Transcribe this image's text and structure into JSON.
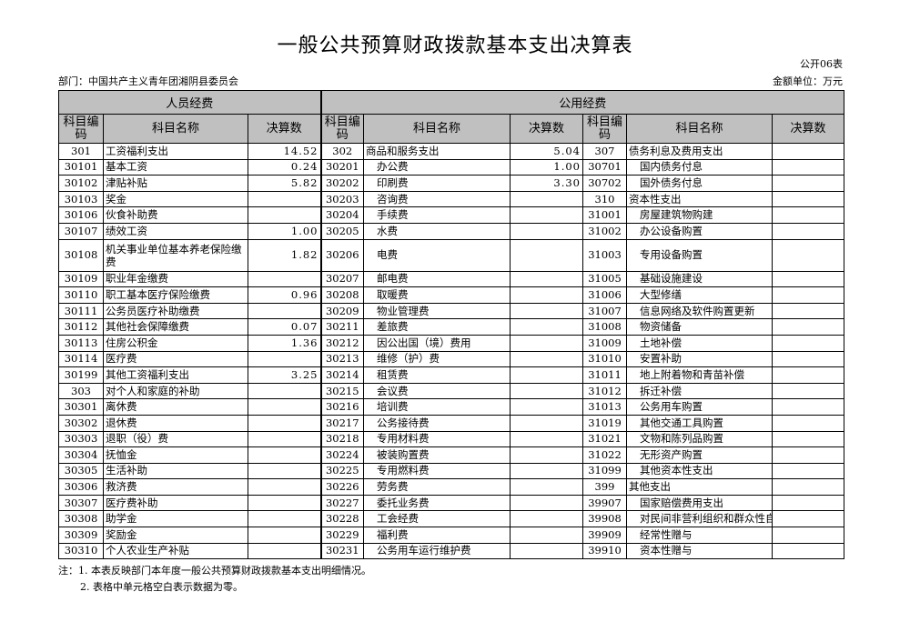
{
  "title": "一般公共预算财政拨款基本支出决算表",
  "form_no": "公开06表",
  "department": "部门：中国共产主义青年团湘阴县委员会",
  "unit": "金额单位：万元",
  "sections": {
    "personnel": "人员经费",
    "public": "公用经费"
  },
  "columns": {
    "code": "科目编码",
    "name": "科目名称",
    "amount": "决算数"
  },
  "rows": [
    [
      [
        "301",
        "工资福利支出",
        "14.52"
      ],
      [
        "302",
        "商品和服务支出",
        "5.04"
      ],
      [
        "307",
        "债务利息及费用支出",
        ""
      ]
    ],
    [
      [
        "30101",
        "基本工资",
        "0.24"
      ],
      [
        "30201",
        "办公费",
        "1.00"
      ],
      [
        "30701",
        "国内债务付息",
        ""
      ]
    ],
    [
      [
        "30102",
        "津贴补贴",
        "5.82"
      ],
      [
        "30202",
        "印刷费",
        "3.30"
      ],
      [
        "30702",
        "国外债务付息",
        ""
      ]
    ],
    [
      [
        "30103",
        "奖金",
        ""
      ],
      [
        "30203",
        "咨询费",
        ""
      ],
      [
        "310",
        "资本性支出",
        ""
      ]
    ],
    [
      [
        "30106",
        "伙食补助费",
        ""
      ],
      [
        "30204",
        "手续费",
        ""
      ],
      [
        "31001",
        "房屋建筑物购建",
        ""
      ]
    ],
    [
      [
        "30107",
        "绩效工资",
        "1.00"
      ],
      [
        "30205",
        "水费",
        ""
      ],
      [
        "31002",
        "办公设备购置",
        ""
      ]
    ],
    [
      [
        "30108",
        "机关事业单位基本养老保险缴费",
        "1.82"
      ],
      [
        "30206",
        "电费",
        ""
      ],
      [
        "31003",
        "专用设备购置",
        ""
      ]
    ],
    [
      [
        "30109",
        "职业年金缴费",
        ""
      ],
      [
        "30207",
        "邮电费",
        ""
      ],
      [
        "31005",
        "基础设施建设",
        ""
      ]
    ],
    [
      [
        "30110",
        "职工基本医疗保险缴费",
        "0.96"
      ],
      [
        "30208",
        "取暖费",
        ""
      ],
      [
        "31006",
        "大型修缮",
        ""
      ]
    ],
    [
      [
        "30111",
        "公务员医疗补助缴费",
        ""
      ],
      [
        "30209",
        "物业管理费",
        ""
      ],
      [
        "31007",
        "信息网络及软件购置更新",
        ""
      ]
    ],
    [
      [
        "30112",
        "其他社会保障缴费",
        "0.07"
      ],
      [
        "30211",
        "差旅费",
        ""
      ],
      [
        "31008",
        "物资储备",
        ""
      ]
    ],
    [
      [
        "30113",
        "住房公积金",
        "1.36"
      ],
      [
        "30212",
        "因公出国（境）费用",
        ""
      ],
      [
        "31009",
        "土地补偿",
        ""
      ]
    ],
    [
      [
        "30114",
        "医疗费",
        ""
      ],
      [
        "30213",
        "维修（护）费",
        ""
      ],
      [
        "31010",
        "安置补助",
        ""
      ]
    ],
    [
      [
        "30199",
        "其他工资福利支出",
        "3.25"
      ],
      [
        "30214",
        "租赁费",
        ""
      ],
      [
        "31011",
        "地上附着物和青苗补偿",
        ""
      ]
    ],
    [
      [
        "303",
        "对个人和家庭的补助",
        ""
      ],
      [
        "30215",
        "会议费",
        ""
      ],
      [
        "31012",
        "拆迁补偿",
        ""
      ]
    ],
    [
      [
        "30301",
        "离休费",
        ""
      ],
      [
        "30216",
        "培训费",
        ""
      ],
      [
        "31013",
        "公务用车购置",
        ""
      ]
    ],
    [
      [
        "30302",
        "退休费",
        ""
      ],
      [
        "30217",
        "公务接待费",
        ""
      ],
      [
        "31019",
        "其他交通工具购置",
        ""
      ]
    ],
    [
      [
        "30303",
        "退职（役）费",
        ""
      ],
      [
        "30218",
        "专用材料费",
        ""
      ],
      [
        "31021",
        "文物和陈列品购置",
        ""
      ]
    ],
    [
      [
        "30304",
        "抚恤金",
        ""
      ],
      [
        "30224",
        "被装购置费",
        ""
      ],
      [
        "31022",
        "无形资产购置",
        ""
      ]
    ],
    [
      [
        "30305",
        "生活补助",
        ""
      ],
      [
        "30225",
        "专用燃料费",
        ""
      ],
      [
        "31099",
        "其他资本性支出",
        ""
      ]
    ],
    [
      [
        "30306",
        "救济费",
        ""
      ],
      [
        "30226",
        "劳务费",
        ""
      ],
      [
        "399",
        "其他支出",
        ""
      ]
    ],
    [
      [
        "30307",
        "医疗费补助",
        ""
      ],
      [
        "30227",
        "委托业务费",
        ""
      ],
      [
        "39907",
        "国家赔偿费用支出",
        ""
      ]
    ],
    [
      [
        "30308",
        "助学金",
        ""
      ],
      [
        "30228",
        "工会经费",
        ""
      ],
      [
        "39908",
        "对民间非营利组织和群众性自",
        ""
      ]
    ],
    [
      [
        "30309",
        "奖励金",
        ""
      ],
      [
        "30229",
        "福利费",
        ""
      ],
      [
        "39909",
        "经常性赠与",
        ""
      ]
    ],
    [
      [
        "30310",
        "个人农业生产补贴",
        ""
      ],
      [
        "30231",
        "公务用车运行维护费",
        ""
      ],
      [
        "39910",
        "资本性赠与",
        ""
      ]
    ]
  ],
  "notes": [
    "注：1. 本表反映部门本年度一般公共预算财政拨款基本支出明细情况。",
    "2. 表格中单元格空白表示数据为零。"
  ]
}
